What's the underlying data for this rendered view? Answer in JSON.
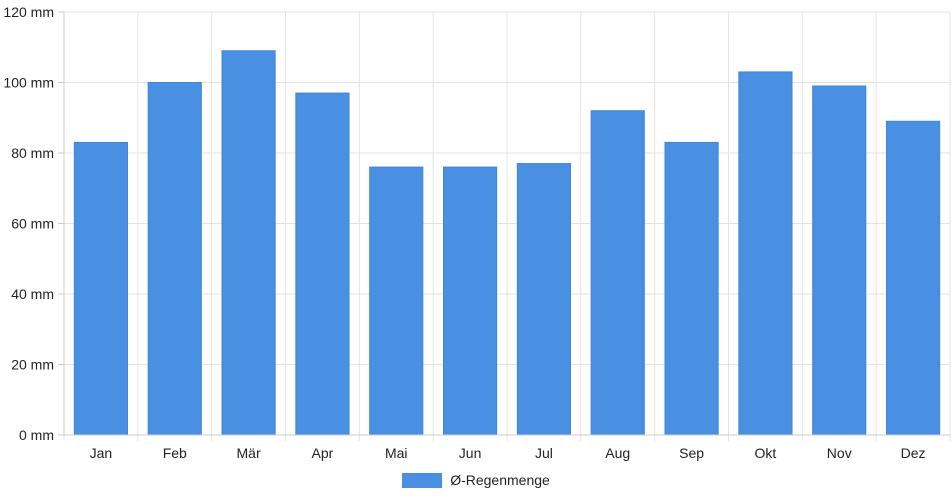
{
  "chart_data": {
    "type": "bar",
    "categories": [
      "Jan",
      "Feb",
      "Mär",
      "Apr",
      "Mai",
      "Jun",
      "Jul",
      "Aug",
      "Sep",
      "Okt",
      "Nov",
      "Dez"
    ],
    "series": [
      {
        "name": "Ø-Regenmenge",
        "values": [
          83,
          100,
          109,
          97,
          76,
          76,
          77,
          92,
          83,
          103,
          99,
          89
        ],
        "color": "#4a90e2"
      }
    ],
    "ylim": [
      0,
      120
    ],
    "yticks": [
      0,
      20,
      40,
      60,
      80,
      100,
      120
    ],
    "ytick_labels": [
      "0 mm",
      "20 mm",
      "40 mm",
      "60 mm",
      "80 mm",
      "100 mm",
      "120 mm"
    ],
    "grid": true,
    "legend_position": "bottom-center"
  }
}
